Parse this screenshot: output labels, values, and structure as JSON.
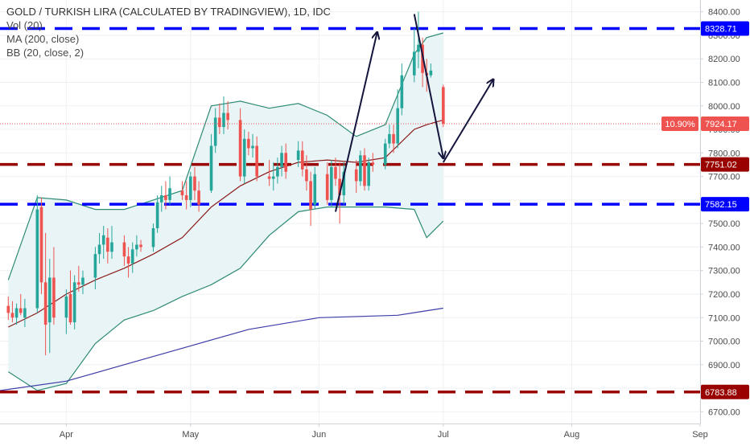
{
  "legend": {
    "title": "GOLD / TURKISH LIRA (CALCULATED BY TRADINGVIEW), 1D, IDC",
    "vol": "Vol (20)",
    "ma": "MA (200, close)",
    "bb": "BB (20, close, 2)"
  },
  "chart_data": {
    "type": "candlestick",
    "title": "GOLD / TURKISH LIRA (CALCULATED BY TRADINGVIEW), 1D, IDC",
    "ylim": [
      6650,
      8450
    ],
    "y_ticks": [
      6700,
      6800,
      6900,
      7000,
      7100,
      7200,
      7300,
      7400,
      7500,
      7600,
      7700,
      7800,
      7900,
      8000,
      8100,
      8200,
      8300,
      8400
    ],
    "x_range": [
      "2019-03-16",
      "2019-09-01"
    ],
    "x_ticks": [
      {
        "date": "2019-04-01",
        "label": "Apr"
      },
      {
        "date": "2019-05-01",
        "label": "May"
      },
      {
        "date": "2019-06-01",
        "label": "Jun"
      },
      {
        "date": "2019-07-01",
        "label": "Jul"
      },
      {
        "date": "2019-08-01",
        "label": "Aug"
      },
      {
        "date": "2019-09-01",
        "label": "Sep"
      }
    ],
    "grid": true,
    "up_color": "#26a69a",
    "down_color": "#ef5350",
    "candles": [
      {
        "date": "2019-03-18",
        "o": 7150,
        "h": 7190,
        "l": 7090,
        "c": 7120
      },
      {
        "date": "2019-03-19",
        "o": 7120,
        "h": 7170,
        "l": 7080,
        "c": 7100
      },
      {
        "date": "2019-03-20",
        "o": 7100,
        "h": 7160,
        "l": 7070,
        "c": 7140
      },
      {
        "date": "2019-03-21",
        "o": 7140,
        "h": 7200,
        "l": 7110,
        "c": 7120
      },
      {
        "date": "2019-03-22",
        "o": 7100,
        "h": 7180,
        "l": 7060,
        "c": 7140
      },
      {
        "date": "2019-03-25",
        "o": 7140,
        "h": 7620,
        "l": 7120,
        "c": 7560
      },
      {
        "date": "2019-03-26",
        "o": 7570,
        "h": 7610,
        "l": 7200,
        "c": 7250
      },
      {
        "date": "2019-03-27",
        "o": 7250,
        "h": 7460,
        "l": 6940,
        "c": 7070
      },
      {
        "date": "2019-03-28",
        "o": 7080,
        "h": 7350,
        "l": 6950,
        "c": 7270
      },
      {
        "date": "2019-03-29",
        "o": 7270,
        "h": 7400,
        "l": 7070,
        "c": 7100
      },
      {
        "date": "2019-04-01",
        "o": 7100,
        "h": 7220,
        "l": 7030,
        "c": 7190
      },
      {
        "date": "2019-04-02",
        "o": 7200,
        "h": 7300,
        "l": 7070,
        "c": 7080
      },
      {
        "date": "2019-04-03",
        "o": 7080,
        "h": 7280,
        "l": 7050,
        "c": 7250
      },
      {
        "date": "2019-04-04",
        "o": 7250,
        "h": 7320,
        "l": 7210,
        "c": 7240
      },
      {
        "date": "2019-04-05",
        "o": 7240,
        "h": 7300,
        "l": 7200,
        "c": 7270
      },
      {
        "date": "2019-04-08",
        "o": 7270,
        "h": 7400,
        "l": 7220,
        "c": 7370
      },
      {
        "date": "2019-04-09",
        "o": 7370,
        "h": 7460,
        "l": 7330,
        "c": 7410
      },
      {
        "date": "2019-04-10",
        "o": 7410,
        "h": 7490,
        "l": 7350,
        "c": 7450
      },
      {
        "date": "2019-04-11",
        "o": 7440,
        "h": 7480,
        "l": 7330,
        "c": 7380
      },
      {
        "date": "2019-04-12",
        "o": 7380,
        "h": 7490,
        "l": 7350,
        "c": 7420
      },
      {
        "date": "2019-04-15",
        "o": 7420,
        "h": 7450,
        "l": 7320,
        "c": 7360
      },
      {
        "date": "2019-04-16",
        "o": 7360,
        "h": 7400,
        "l": 7270,
        "c": 7330
      },
      {
        "date": "2019-04-17",
        "o": 7330,
        "h": 7420,
        "l": 7290,
        "c": 7390
      },
      {
        "date": "2019-04-18",
        "o": 7390,
        "h": 7450,
        "l": 7360,
        "c": 7410
      },
      {
        "date": "2019-04-19",
        "o": 7410,
        "h": 7430,
        "l": 7380,
        "c": 7400
      },
      {
        "date": "2019-04-22",
        "o": 7400,
        "h": 7500,
        "l": 7380,
        "c": 7480
      },
      {
        "date": "2019-04-23",
        "o": 7480,
        "h": 7620,
        "l": 7460,
        "c": 7590
      },
      {
        "date": "2019-04-24",
        "o": 7590,
        "h": 7660,
        "l": 7550,
        "c": 7620
      },
      {
        "date": "2019-04-25",
        "o": 7620,
        "h": 7680,
        "l": 7560,
        "c": 7600
      },
      {
        "date": "2019-04-26",
        "o": 7600,
        "h": 7700,
        "l": 7580,
        "c": 7650
      },
      {
        "date": "2019-04-29",
        "o": 7640,
        "h": 7680,
        "l": 7600,
        "c": 7620
      },
      {
        "date": "2019-04-30",
        "o": 7620,
        "h": 7680,
        "l": 7560,
        "c": 7600
      },
      {
        "date": "2019-05-01",
        "o": 7600,
        "h": 7720,
        "l": 7570,
        "c": 7700
      },
      {
        "date": "2019-05-02",
        "o": 7700,
        "h": 7740,
        "l": 7600,
        "c": 7640
      },
      {
        "date": "2019-05-03",
        "o": 7640,
        "h": 7680,
        "l": 7550,
        "c": 7580
      },
      {
        "date": "2019-05-06",
        "o": 7640,
        "h": 7880,
        "l": 7630,
        "c": 7830
      },
      {
        "date": "2019-05-07",
        "o": 7830,
        "h": 7990,
        "l": 7800,
        "c": 7950
      },
      {
        "date": "2019-05-08",
        "o": 7950,
        "h": 8010,
        "l": 7880,
        "c": 7910
      },
      {
        "date": "2019-05-09",
        "o": 7910,
        "h": 8040,
        "l": 7880,
        "c": 7970
      },
      {
        "date": "2019-05-10",
        "o": 7970,
        "h": 8020,
        "l": 7900,
        "c": 7940
      },
      {
        "date": "2019-05-13",
        "o": 7940,
        "h": 7990,
        "l": 7680,
        "c": 7700
      },
      {
        "date": "2019-05-14",
        "o": 7700,
        "h": 7900,
        "l": 7670,
        "c": 7860
      },
      {
        "date": "2019-05-15",
        "o": 7860,
        "h": 7890,
        "l": 7790,
        "c": 7820
      },
      {
        "date": "2019-05-16",
        "o": 7820,
        "h": 7880,
        "l": 7780,
        "c": 7830
      },
      {
        "date": "2019-05-17",
        "o": 7830,
        "h": 7870,
        "l": 7680,
        "c": 7700
      },
      {
        "date": "2019-05-20",
        "o": 7700,
        "h": 7770,
        "l": 7660,
        "c": 7690
      },
      {
        "date": "2019-05-21",
        "o": 7690,
        "h": 7760,
        "l": 7640,
        "c": 7700
      },
      {
        "date": "2019-05-22",
        "o": 7700,
        "h": 7780,
        "l": 7670,
        "c": 7740
      },
      {
        "date": "2019-05-23",
        "o": 7740,
        "h": 7830,
        "l": 7700,
        "c": 7800
      },
      {
        "date": "2019-05-24",
        "o": 7800,
        "h": 7840,
        "l": 7690,
        "c": 7720
      },
      {
        "date": "2019-05-27",
        "o": 7770,
        "h": 7850,
        "l": 7740,
        "c": 7810
      },
      {
        "date": "2019-05-28",
        "o": 7810,
        "h": 7850,
        "l": 7700,
        "c": 7730
      },
      {
        "date": "2019-05-29",
        "o": 7730,
        "h": 7790,
        "l": 7640,
        "c": 7680
      },
      {
        "date": "2019-05-30",
        "o": 7680,
        "h": 7720,
        "l": 7490,
        "c": 7560
      },
      {
        "date": "2019-05-31",
        "o": 7580,
        "h": 7740,
        "l": 7560,
        "c": 7710
      },
      {
        "date": "2019-06-03",
        "o": 7710,
        "h": 7760,
        "l": 7580,
        "c": 7600
      },
      {
        "date": "2019-06-04",
        "o": 7600,
        "h": 7770,
        "l": 7570,
        "c": 7740
      },
      {
        "date": "2019-06-05",
        "o": 7740,
        "h": 7780,
        "l": 7660,
        "c": 7690
      },
      {
        "date": "2019-06-06",
        "o": 7690,
        "h": 7760,
        "l": 7500,
        "c": 7620
      },
      {
        "date": "2019-06-07",
        "o": 7620,
        "h": 7760,
        "l": 7580,
        "c": 7720
      },
      {
        "date": "2019-06-10",
        "o": 7730,
        "h": 7770,
        "l": 7630,
        "c": 7680
      },
      {
        "date": "2019-06-11",
        "o": 7680,
        "h": 7810,
        "l": 7660,
        "c": 7790
      },
      {
        "date": "2019-06-12",
        "o": 7790,
        "h": 7820,
        "l": 7640,
        "c": 7660
      },
      {
        "date": "2019-06-13",
        "o": 7660,
        "h": 7780,
        "l": 7640,
        "c": 7760
      },
      {
        "date": "2019-06-14",
        "o": 7760,
        "h": 7800,
        "l": 7720,
        "c": 7750
      },
      {
        "date": "2019-06-17",
        "o": 7750,
        "h": 7860,
        "l": 7730,
        "c": 7840
      },
      {
        "date": "2019-06-18",
        "o": 7840,
        "h": 7920,
        "l": 7820,
        "c": 7880
      },
      {
        "date": "2019-06-19",
        "o": 7880,
        "h": 7920,
        "l": 7800,
        "c": 7840
      },
      {
        "date": "2019-06-20",
        "o": 7840,
        "h": 8070,
        "l": 7820,
        "c": 7990
      },
      {
        "date": "2019-06-21",
        "o": 7990,
        "h": 8180,
        "l": 7960,
        "c": 8130
      },
      {
        "date": "2019-06-24",
        "o": 8130,
        "h": 8330,
        "l": 8100,
        "c": 8230
      },
      {
        "date": "2019-06-25",
        "o": 8230,
        "h": 8400,
        "l": 8160,
        "c": 8260
      },
      {
        "date": "2019-06-26",
        "o": 8260,
        "h": 8290,
        "l": 8080,
        "c": 8140
      },
      {
        "date": "2019-06-27",
        "o": 8140,
        "h": 8200,
        "l": 8060,
        "c": 8130
      },
      {
        "date": "2019-06-28",
        "o": 8130,
        "h": 8180,
        "l": 8120,
        "c": 8150
      },
      {
        "date": "2019-07-01",
        "o": 8080,
        "h": 8090,
        "l": 7910,
        "c": 7924
      }
    ],
    "bollinger": {
      "dates": [
        "2019-03-18",
        "2019-03-25",
        "2019-04-01",
        "2019-04-08",
        "2019-04-15",
        "2019-04-22",
        "2019-04-29",
        "2019-05-06",
        "2019-05-13",
        "2019-05-20",
        "2019-05-27",
        "2019-06-03",
        "2019-06-10",
        "2019-06-17",
        "2019-06-24",
        "2019-06-27",
        "2019-07-01"
      ],
      "upper": [
        7260,
        7610,
        7600,
        7560,
        7560,
        7600,
        7640,
        8000,
        8020,
        7990,
        8010,
        7960,
        7870,
        7920,
        8220,
        8290,
        8310
      ],
      "middle": [
        7060,
        7120,
        7200,
        7260,
        7310,
        7370,
        7440,
        7570,
        7660,
        7720,
        7760,
        7770,
        7760,
        7780,
        7900,
        7920,
        7940
      ],
      "lower": [
        6870,
        6790,
        6820,
        6990,
        7090,
        7130,
        7190,
        7240,
        7310,
        7450,
        7550,
        7570,
        7570,
        7570,
        7560,
        7440,
        7510
      ]
    },
    "ma200": {
      "dates": [
        "2019-03-16",
        "2019-04-01",
        "2019-04-15",
        "2019-05-01",
        "2019-05-15",
        "2019-06-01",
        "2019-06-20",
        "2019-07-01"
      ],
      "values": [
        6790,
        6830,
        6900,
        6980,
        7050,
        7100,
        7110,
        7140
      ]
    },
    "horizontal_lines": [
      {
        "value": 8328.71,
        "label": "8328.71",
        "color": "#0000ff"
      },
      {
        "value": 7751.02,
        "label": "7751.02",
        "color": "#990000"
      },
      {
        "value": 7582.15,
        "label": "7582.15",
        "color": "#0000ff"
      },
      {
        "value": 6783.88,
        "label": "6783.88",
        "color": "#990000"
      }
    ],
    "last_price": {
      "value": 7924.17,
      "label": "7924.17",
      "change": "10.90%",
      "color": "#ef5350"
    },
    "annotations": [
      {
        "type": "arrow",
        "from": {
          "date": "2019-06-05",
          "value": 7550
        },
        "to": {
          "date": "2019-06-15",
          "value": 8310
        }
      },
      {
        "type": "arrow",
        "from": {
          "date": "2019-06-24",
          "value": 8390
        },
        "to": {
          "date": "2019-07-01",
          "value": 7780
        }
      },
      {
        "type": "arrow",
        "from": {
          "date": "2019-07-01",
          "value": 7760
        },
        "to": {
          "date": "2019-07-13",
          "value": 8110
        }
      }
    ],
    "colors": {
      "bb_band": "#2e8b74",
      "bb_fill": "#e8f4f5",
      "bb_middle": "#8b1a1a",
      "ma200": "#3c3ca8",
      "arrow": "#14143c",
      "grid": "#eef0f3",
      "axis_text": "#4a4a4a"
    }
  }
}
